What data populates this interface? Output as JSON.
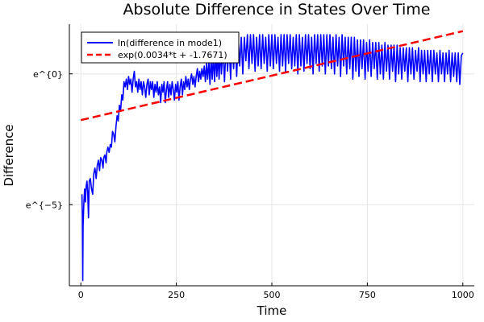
{
  "chart_data": {
    "type": "line",
    "title": "Absolute Difference in States Over Time",
    "xlabel": "Time",
    "ylabel": "Difference",
    "xlim": [
      -30,
      1030
    ],
    "ylim": [
      -8.1,
      1.9
    ],
    "x_ticks": [
      {
        "value": 0,
        "label": "0"
      },
      {
        "value": 250,
        "label": "250"
      },
      {
        "value": 500,
        "label": "500"
      },
      {
        "value": 750,
        "label": "750"
      },
      {
        "value": 1000,
        "label": "1000"
      }
    ],
    "y_ticks": [
      {
        "value": 0,
        "label": "e^{0}"
      },
      {
        "value": -5,
        "label": "e^{−5}"
      }
    ],
    "grid": true,
    "legend_position": "top-left",
    "series": [
      {
        "name": "ln(difference in mode1)",
        "color": "#0000ff",
        "style": "solid",
        "points": [
          [
            3,
            -4.6
          ],
          [
            4,
            -5.4
          ],
          [
            5,
            -7.9
          ],
          [
            6,
            -5.8
          ],
          [
            8,
            -4.9
          ],
          [
            10,
            -4.4
          ],
          [
            12,
            -4.9
          ],
          [
            14,
            -4.3
          ],
          [
            16,
            -4.1
          ],
          [
            18,
            -4.5
          ],
          [
            20,
            -5.5
          ],
          [
            22,
            -4.1
          ],
          [
            25,
            -4.0
          ],
          [
            28,
            -4.4
          ],
          [
            31,
            -4.6
          ],
          [
            34,
            -3.8
          ],
          [
            37,
            -3.6
          ],
          [
            40,
            -4.0
          ],
          [
            43,
            -3.5
          ],
          [
            46,
            -3.3
          ],
          [
            49,
            -3.7
          ],
          [
            52,
            -3.2
          ],
          [
            55,
            -3.3
          ],
          [
            58,
            -3.6
          ],
          [
            60,
            -3.2
          ],
          [
            63,
            -3.1
          ],
          [
            66,
            -3.4
          ],
          [
            68,
            -3.0
          ],
          [
            71,
            -2.8
          ],
          [
            74,
            -3.0
          ],
          [
            77,
            -2.7
          ],
          [
            80,
            -2.8
          ],
          [
            83,
            -2.2
          ],
          [
            86,
            -2.3
          ],
          [
            89,
            -2.6
          ],
          [
            92,
            -2.0
          ],
          [
            95,
            -1.6
          ],
          [
            98,
            -1.8
          ],
          [
            101,
            -1.2
          ],
          [
            104,
            -1.4
          ],
          [
            107,
            -0.8
          ],
          [
            110,
            -1.0
          ],
          [
            113,
            -0.3
          ],
          [
            116,
            -0.5
          ],
          [
            119,
            -0.2
          ],
          [
            122,
            -0.6
          ],
          [
            125,
            -0.1
          ],
          [
            128,
            -0.4
          ],
          [
            131,
            -0.2
          ],
          [
            134,
            -0.7
          ],
          [
            137,
            -0.2
          ],
          [
            140,
            0.1
          ],
          [
            143,
            -0.5
          ],
          [
            146,
            -0.3
          ],
          [
            149,
            -0.7
          ],
          [
            152,
            -0.2
          ],
          [
            155,
            -0.6
          ],
          [
            158,
            -0.3
          ],
          [
            161,
            -0.8
          ],
          [
            164,
            -0.3
          ],
          [
            167,
            -0.5
          ],
          [
            170,
            -0.9
          ],
          [
            173,
            -0.4
          ],
          [
            176,
            -0.2
          ],
          [
            179,
            -0.8
          ],
          [
            182,
            -0.3
          ],
          [
            185,
            -0.6
          ],
          [
            188,
            -0.3
          ],
          [
            191,
            -0.9
          ],
          [
            194,
            -0.4
          ],
          [
            197,
            -0.7
          ],
          [
            200,
            -0.3
          ],
          [
            203,
            -0.8
          ],
          [
            206,
            -0.5
          ],
          [
            209,
            -1.1
          ],
          [
            212,
            -0.4
          ],
          [
            215,
            -0.7
          ],
          [
            218,
            -0.3
          ],
          [
            221,
            -1.1
          ],
          [
            224,
            -0.6
          ],
          [
            227,
            -0.3
          ],
          [
            230,
            -0.9
          ],
          [
            233,
            -0.4
          ],
          [
            236,
            -0.8
          ],
          [
            239,
            -0.3
          ],
          [
            242,
            -0.6
          ],
          [
            245,
            -1.0
          ],
          [
            248,
            -0.4
          ],
          [
            251,
            -0.7
          ],
          [
            254,
            -0.3
          ],
          [
            257,
            -1.0
          ],
          [
            260,
            -0.5
          ],
          [
            263,
            -0.2
          ],
          [
            266,
            -0.8
          ],
          [
            269,
            -0.3
          ],
          [
            272,
            -0.6
          ],
          [
            275,
            -0.1
          ],
          [
            278,
            -0.5
          ],
          [
            281,
            -0.2
          ],
          [
            284,
            -0.6
          ],
          [
            287,
            -0.2
          ],
          [
            290,
            0.0
          ],
          [
            293,
            -0.4
          ],
          [
            296,
            -0.1
          ],
          [
            299,
            -0.5
          ],
          [
            302,
            -0.1
          ],
          [
            305,
            0.2
          ],
          [
            308,
            -0.3
          ],
          [
            311,
            0.1
          ],
          [
            314,
            -0.2
          ],
          [
            317,
            0.2
          ],
          [
            320,
            -0.1
          ],
          [
            323,
            0.3
          ],
          [
            326,
            -0.3
          ],
          [
            329,
            0.4
          ],
          [
            332,
            -0.2
          ],
          [
            335,
            0.5
          ],
          [
            338,
            -0.4
          ],
          [
            341,
            0.6
          ],
          [
            344,
            -0.2
          ],
          [
            347,
            0.7
          ],
          [
            350,
            -0.3
          ],
          [
            353,
            0.8
          ],
          [
            356,
            -0.1
          ],
          [
            359,
            0.7
          ],
          [
            362,
            -0.2
          ],
          [
            365,
            0.9
          ],
          [
            368,
            0.0
          ],
          [
            372,
            1.0
          ],
          [
            376,
            -0.3
          ],
          [
            380,
            1.1
          ],
          [
            384,
            0.1
          ],
          [
            388,
            1.2
          ],
          [
            392,
            -0.2
          ],
          [
            396,
            1.3
          ],
          [
            400,
            0.2
          ],
          [
            404,
            1.3
          ],
          [
            408,
            -0.1
          ],
          [
            412,
            1.4
          ],
          [
            416,
            0.3
          ],
          [
            420,
            1.4
          ],
          [
            424,
            0.0
          ],
          [
            428,
            1.4
          ],
          [
            432,
            0.5
          ],
          [
            436,
            1.5
          ],
          [
            440,
            0.2
          ],
          [
            444,
            1.5
          ],
          [
            448,
            0.4
          ],
          [
            452,
            1.5
          ],
          [
            456,
            0.1
          ],
          [
            460,
            1.4
          ],
          [
            464,
            0.3
          ],
          [
            468,
            1.5
          ],
          [
            472,
            0.2
          ],
          [
            476,
            1.5
          ],
          [
            480,
            0.4
          ],
          [
            484,
            1.4
          ],
          [
            488,
            0.1
          ],
          [
            492,
            1.5
          ],
          [
            496,
            0.3
          ],
          [
            500,
            1.5
          ],
          [
            504,
            0.2
          ],
          [
            508,
            1.5
          ],
          [
            512,
            0.4
          ],
          [
            516,
            1.4
          ],
          [
            520,
            0.1
          ],
          [
            524,
            1.5
          ],
          [
            528,
            0.3
          ],
          [
            532,
            1.5
          ],
          [
            536,
            0.1
          ],
          [
            540,
            1.5
          ],
          [
            544,
            0.4
          ],
          [
            548,
            1.5
          ],
          [
            552,
            0.2
          ],
          [
            556,
            1.4
          ],
          [
            560,
            0.3
          ],
          [
            564,
            1.5
          ],
          [
            568,
            0.0
          ],
          [
            572,
            1.5
          ],
          [
            576,
            0.3
          ],
          [
            580,
            1.4
          ],
          [
            584,
            0.1
          ],
          [
            588,
            1.5
          ],
          [
            592,
            0.4
          ],
          [
            596,
            1.5
          ],
          [
            600,
            0.2
          ],
          [
            604,
            1.4
          ],
          [
            608,
            0.0
          ],
          [
            612,
            1.5
          ],
          [
            616,
            0.4
          ],
          [
            620,
            1.5
          ],
          [
            624,
            0.1
          ],
          [
            628,
            1.5
          ],
          [
            632,
            0.3
          ],
          [
            636,
            1.5
          ],
          [
            640,
            0.0
          ],
          [
            644,
            1.5
          ],
          [
            648,
            0.3
          ],
          [
            652,
            1.5
          ],
          [
            656,
            0.2
          ],
          [
            660,
            1.4
          ],
          [
            664,
            0.0
          ],
          [
            668,
            1.5
          ],
          [
            672,
            0.3
          ],
          [
            676,
            1.4
          ],
          [
            680,
            -0.1
          ],
          [
            684,
            1.5
          ],
          [
            688,
            0.3
          ],
          [
            692,
            1.4
          ],
          [
            696,
            0.0
          ],
          [
            700,
            1.4
          ],
          [
            704,
            0.2
          ],
          [
            708,
            1.4
          ],
          [
            712,
            -0.2
          ],
          [
            716,
            1.4
          ],
          [
            720,
            0.1
          ],
          [
            724,
            1.3
          ],
          [
            728,
            -0.1
          ],
          [
            732,
            1.3
          ],
          [
            736,
            0.2
          ],
          [
            740,
            1.3
          ],
          [
            744,
            -0.2
          ],
          [
            748,
            1.2
          ],
          [
            752,
            0.1
          ],
          [
            756,
            1.3
          ],
          [
            760,
            -0.1
          ],
          [
            764,
            1.2
          ],
          [
            768,
            0.2
          ],
          [
            772,
            1.2
          ],
          [
            776,
            -0.2
          ],
          [
            780,
            1.2
          ],
          [
            784,
            0.0
          ],
          [
            788,
            1.1
          ],
          [
            792,
            -0.2
          ],
          [
            796,
            1.2
          ],
          [
            800,
            0.1
          ],
          [
            804,
            1.1
          ],
          [
            808,
            -0.2
          ],
          [
            812,
            1.1
          ],
          [
            816,
            0.1
          ],
          [
            820,
            1.1
          ],
          [
            824,
            -0.3
          ],
          [
            828,
            1.1
          ],
          [
            832,
            0.0
          ],
          [
            836,
            1.0
          ],
          [
            840,
            -0.2
          ],
          [
            844,
            1.0
          ],
          [
            848,
            0.1
          ],
          [
            852,
            1.0
          ],
          [
            856,
            -0.3
          ],
          [
            860,
            1.0
          ],
          [
            864,
            0.0
          ],
          [
            868,
            1.0
          ],
          [
            872,
            -0.2
          ],
          [
            876,
            0.9
          ],
          [
            880,
            0.1
          ],
          [
            884,
            1.0
          ],
          [
            888,
            -0.3
          ],
          [
            892,
            0.9
          ],
          [
            896,
            0.0
          ],
          [
            900,
            0.9
          ],
          [
            904,
            -0.3
          ],
          [
            908,
            0.9
          ],
          [
            912,
            0.0
          ],
          [
            916,
            0.9
          ],
          [
            920,
            -0.3
          ],
          [
            924,
            0.9
          ],
          [
            928,
            0.0
          ],
          [
            932,
            0.8
          ],
          [
            936,
            -0.3
          ],
          [
            940,
            0.9
          ],
          [
            944,
            0.0
          ],
          [
            948,
            0.8
          ],
          [
            952,
            -0.3
          ],
          [
            956,
            0.8
          ],
          [
            960,
            0.0
          ],
          [
            964,
            0.9
          ],
          [
            968,
            -0.3
          ],
          [
            972,
            0.8
          ],
          [
            976,
            -0.1
          ],
          [
            980,
            0.8
          ],
          [
            984,
            -0.3
          ],
          [
            988,
            0.8
          ],
          [
            992,
            -0.4
          ],
          [
            996,
            0.7
          ],
          [
            1000,
            0.8
          ]
        ]
      },
      {
        "name": "exp(0.0034*t + -1.7671)",
        "color": "#ff0000",
        "style": "dashed",
        "points": [
          [
            0,
            -1.7671
          ],
          [
            1000,
            1.6329
          ]
        ]
      }
    ]
  }
}
